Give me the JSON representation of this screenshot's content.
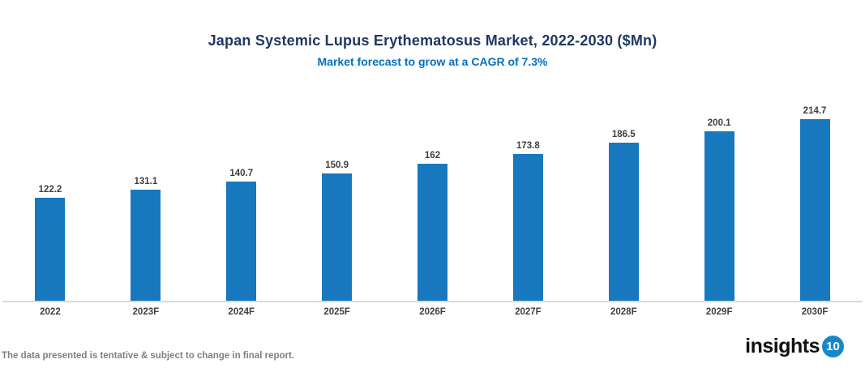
{
  "header": {
    "title": "Japan Systemic Lupus Erythematosus Market, 2022-2030 ($Mn)",
    "subtitle": "Market forecast to grow at a CAGR of 7.3%"
  },
  "chart_data": {
    "type": "bar",
    "categories": [
      "2022",
      "2023F",
      "2024F",
      "2025F",
      "2026F",
      "2027F",
      "2028F",
      "2029F",
      "2030F"
    ],
    "values": [
      122.2,
      131.1,
      140.7,
      150.9,
      162,
      173.8,
      186.5,
      200.1,
      214.7
    ],
    "title": "Japan Systemic Lupus Erythematosus Market, 2022-2030 ($Mn)",
    "subtitle": "Market forecast to grow at a CAGR of 7.3%",
    "xlabel": "",
    "ylabel": "",
    "ylim": [
      0,
      230
    ],
    "grid": false,
    "legend": false,
    "data_labels": true
  },
  "footer": {
    "note": "The data presented is tentative & subject to change in final report.",
    "logo_text": "insights",
    "logo_badge": "10"
  },
  "colors": {
    "title": "#1F3864",
    "subtitle": "#0070C0",
    "bar": "#1878BE",
    "data_label": "#404040",
    "axis_line": "#D9D9D9",
    "footer_text": "#808080",
    "logo_badge_bg": "#1887C9"
  }
}
